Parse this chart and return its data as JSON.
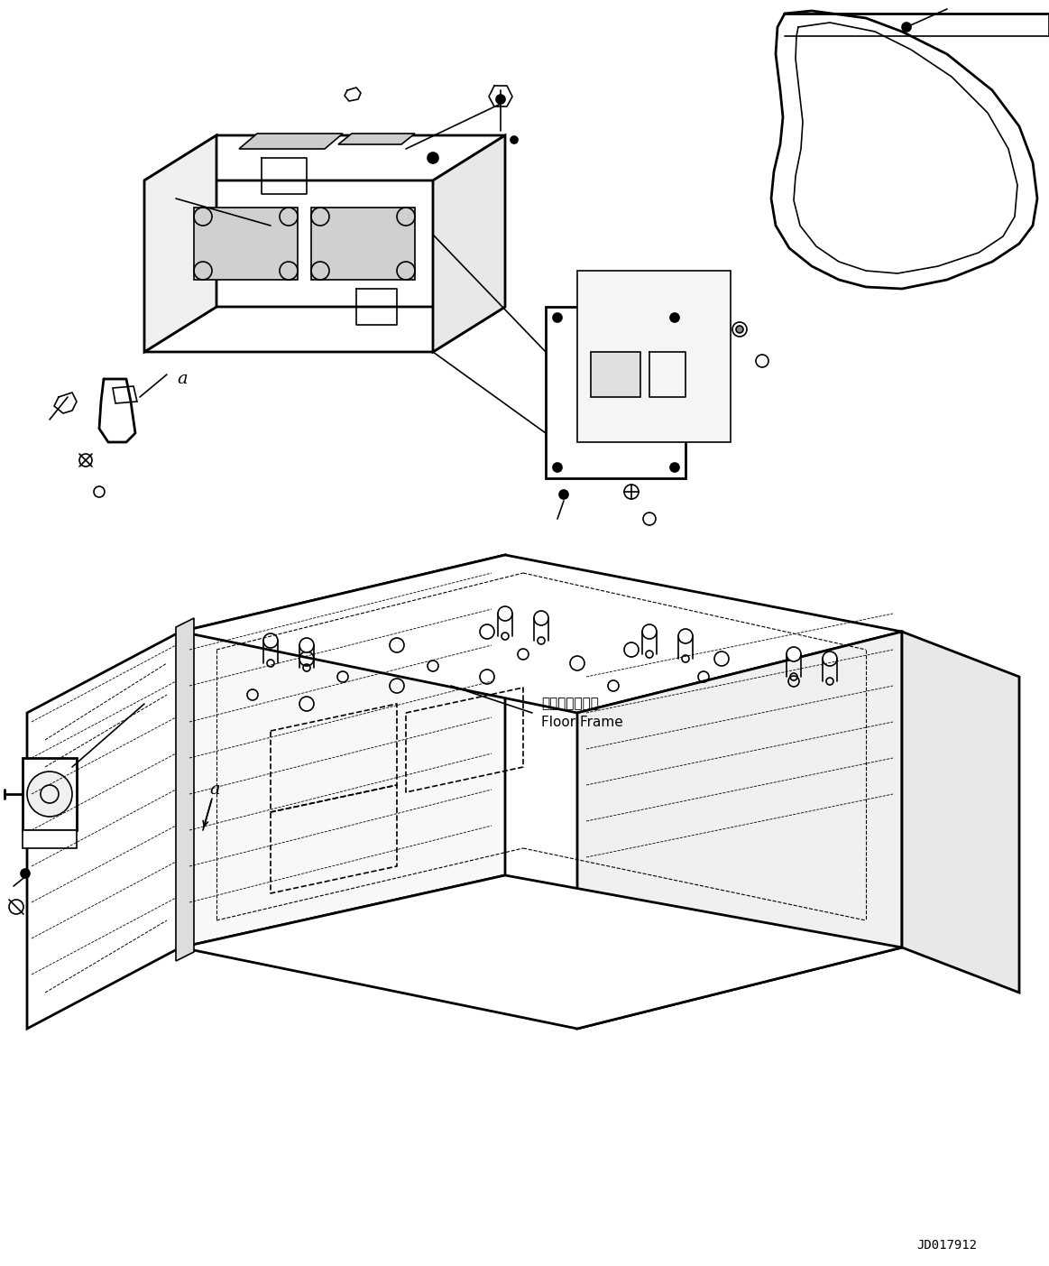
{
  "title": "",
  "background_color": "#ffffff",
  "line_color": "#000000",
  "line_width": 1.2,
  "diagram_id": "JD017912",
  "floor_frame_label_jp": "フロアフレーム",
  "floor_frame_label_en": "Floor Frame",
  "annotation_a": "a",
  "figsize": [
    11.63,
    14.03
  ],
  "dpi": 100
}
